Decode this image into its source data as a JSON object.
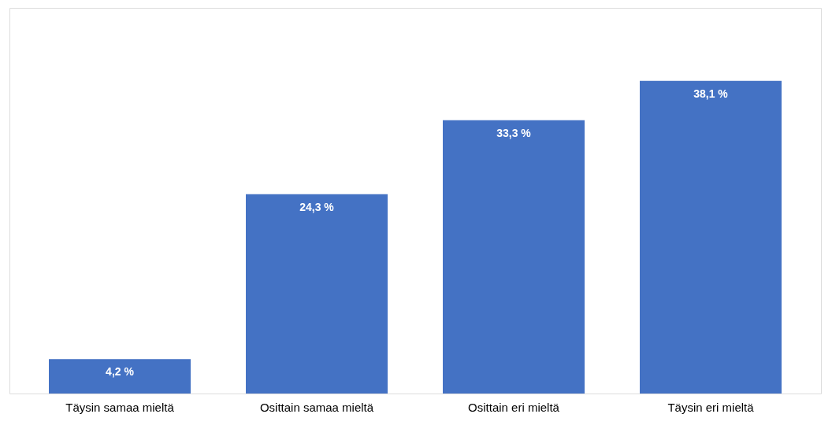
{
  "chart_data": {
    "type": "bar",
    "categories": [
      "Täysin samaa mieltä",
      "Osittain samaa mieltä",
      "Osittain eri mieltä",
      "Täysin eri mieltä"
    ],
    "values": [
      4.2,
      24.3,
      33.3,
      38.1
    ],
    "value_labels": [
      "4,2 %",
      "24,3 %",
      "33,3 %",
      "38,1 %"
    ],
    "color": "#4472c4",
    "ylim": [
      0,
      47
    ],
    "grid": false
  }
}
